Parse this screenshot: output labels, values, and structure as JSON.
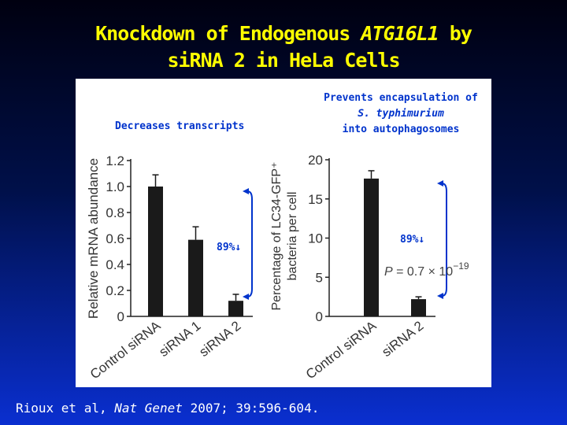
{
  "title": {
    "line1_prefix": "Knockdown of Endogenous ",
    "line1_gene": "ATG16L1",
    "line1_suffix": " by",
    "line2": "siRNA 2 in HeLa Cells"
  },
  "citation": {
    "authors": "Rioux et al, ",
    "journal": "Nat Genet",
    "details": " 2007; 39:596-604."
  },
  "colors": {
    "bar": "#1a1a1a",
    "annotation": "#0033cc",
    "title": "#ffff00"
  },
  "chart_data": [
    {
      "type": "bar",
      "title": "Decreases transcripts",
      "ylabel": "Relative mRNA abundance",
      "ylim": [
        0,
        1.2
      ],
      "yticks": [
        "0",
        "0.2",
        "0.4",
        "0.6",
        "0.8",
        "1.0",
        "1.2"
      ],
      "categories": [
        "Control siRNA",
        "siRNA 1",
        "siRNA 2"
      ],
      "values": [
        1.0,
        0.59,
        0.12
      ],
      "errors": [
        0.09,
        0.1,
        0.05
      ],
      "annotation": "89%↓"
    },
    {
      "type": "bar",
      "title_line1": "Prevents encapsulation of",
      "title_species": "S. typhimurium",
      "title_line3": "into autophagosomes",
      "ylabel_line1": "Percentage of LC34-GFP⁺",
      "ylabel_line2": "bacteria per cell",
      "ylim": [
        0,
        20
      ],
      "yticks": [
        "0",
        "5",
        "10",
        "15",
        "20"
      ],
      "categories": [
        "Control siRNA",
        "siRNA 2"
      ],
      "values": [
        17.6,
        2.2
      ],
      "errors": [
        1.0,
        0.3
      ],
      "annotation": "89%↓",
      "pvalue_prefix": "P = 0.7 × 10",
      "pvalue_exponent": "−19"
    }
  ]
}
